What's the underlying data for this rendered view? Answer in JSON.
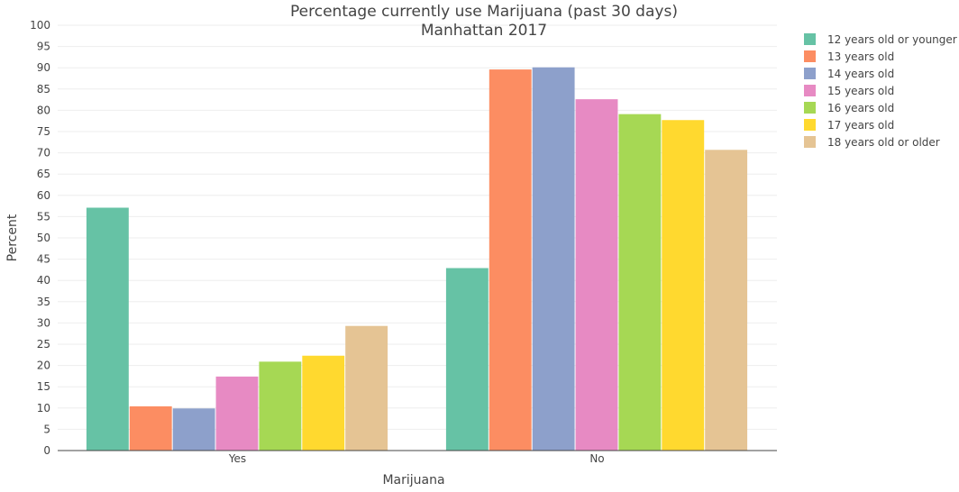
{
  "chart_data": {
    "type": "bar",
    "title": "Percentage currently use Marijuana (past 30 days)",
    "subtitle": "Manhattan 2017",
    "xlabel": "Marijuana",
    "ylabel": "Percent",
    "ylim": [
      0,
      100
    ],
    "yticks": [
      0,
      5,
      10,
      15,
      20,
      25,
      30,
      35,
      40,
      45,
      50,
      55,
      60,
      65,
      70,
      75,
      80,
      85,
      90,
      95,
      100
    ],
    "categories": [
      "Yes",
      "No"
    ],
    "grid": true,
    "legend_position": "right",
    "series": [
      {
        "name": "12 years old or younger",
        "color": "#66c2a5",
        "values": [
          57.1,
          42.9
        ]
      },
      {
        "name": "13 years old",
        "color": "#fc8d62",
        "values": [
          10.4,
          89.6
        ]
      },
      {
        "name": "14 years old",
        "color": "#8da0cb",
        "values": [
          9.9,
          90.1
        ]
      },
      {
        "name": "15 years old",
        "color": "#e78ac3",
        "values": [
          17.4,
          82.6
        ]
      },
      {
        "name": "16 years old",
        "color": "#a6d854",
        "values": [
          20.9,
          79.1
        ]
      },
      {
        "name": "17 years old",
        "color": "#ffd92f",
        "values": [
          22.3,
          77.7
        ]
      },
      {
        "name": "18 years old or older",
        "color": "#e5c494",
        "values": [
          29.3,
          70.7
        ]
      }
    ]
  }
}
